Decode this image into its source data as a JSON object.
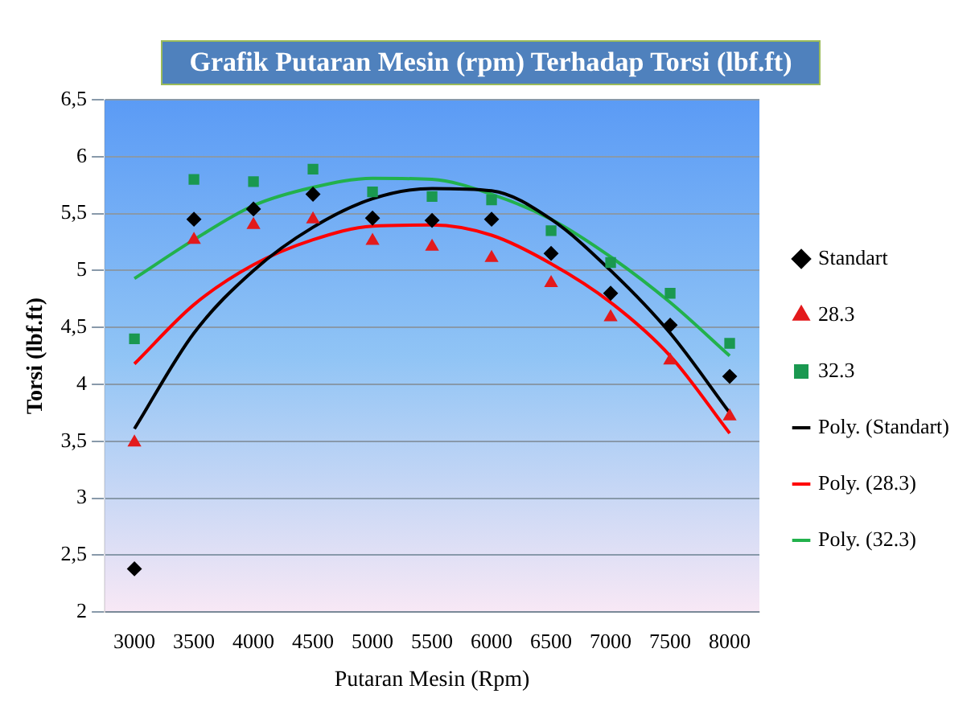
{
  "chart_data": {
    "type": "scatter",
    "title": "Grafik Putaran Mesin (rpm) Terhadap Torsi (lbf.ft)",
    "xlabel": "Putaran Mesin (Rpm)",
    "ylabel": "Torsi (lbf.ft)",
    "categories": [
      "3000",
      "3500",
      "4000",
      "4500",
      "5000",
      "5500",
      "6000",
      "6500",
      "7000",
      "7500",
      "8000"
    ],
    "ylim": [
      2,
      6.5
    ],
    "yticks": [
      2,
      {
        "value": 2.5,
        "label": "2,5"
      },
      3,
      {
        "value": 3.5,
        "label": "3,5"
      },
      4,
      {
        "value": 4.5,
        "label": "4,5"
      },
      5,
      {
        "value": 5.5,
        "label": "5,5"
      },
      6,
      {
        "value": 6.5,
        "label": "6,5"
      }
    ],
    "grid": "y",
    "legend": "right",
    "series": [
      {
        "name": "Standart",
        "marker": "diamond",
        "color": "#000000",
        "values": [
          2.38,
          5.45,
          5.54,
          5.67,
          5.46,
          5.44,
          5.45,
          5.15,
          4.8,
          4.52,
          4.07
        ]
      },
      {
        "name": "28.3",
        "marker": "triangle",
        "color": "#e31a1c",
        "values": [
          3.49,
          5.27,
          5.4,
          5.45,
          5.26,
          5.21,
          5.11,
          4.89,
          4.59,
          4.21,
          3.72
        ]
      },
      {
        "name": "32.3",
        "marker": "square",
        "color": "#1a9850",
        "values": [
          4.4,
          5.8,
          5.78,
          5.89,
          5.69,
          5.65,
          5.62,
          5.35,
          5.07,
          4.8,
          4.36
        ]
      },
      {
        "name": "Poly. (Standart)",
        "type": "line",
        "marker": "none",
        "color": "#000000",
        "values": [
          3.61,
          4.45,
          5.0,
          5.38,
          5.63,
          5.72,
          5.7,
          5.45,
          5.0,
          4.45,
          3.75
        ]
      },
      {
        "name": "Poly. (28.3)",
        "type": "line",
        "marker": "none",
        "color": "#ff0000",
        "values": [
          4.18,
          4.7,
          5.05,
          5.27,
          5.39,
          5.4,
          5.31,
          5.06,
          4.72,
          4.25,
          3.57
        ]
      },
      {
        "name": "Poly. (32.3)",
        "type": "line",
        "marker": "none",
        "color": "#22b14c",
        "values": [
          4.93,
          5.27,
          5.57,
          5.73,
          5.81,
          5.8,
          5.67,
          5.45,
          5.12,
          4.72,
          4.25
        ]
      }
    ]
  }
}
